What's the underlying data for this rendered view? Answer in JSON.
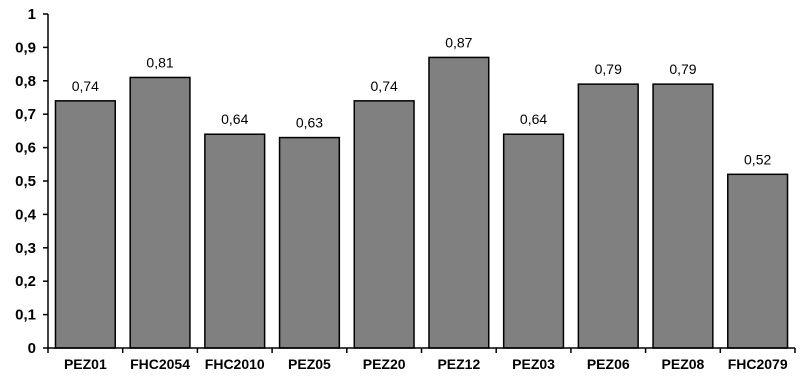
{
  "chart_data": {
    "type": "bar",
    "categories": [
      "PEZ01",
      "FHC2054",
      "FHC2010",
      "PEZ05",
      "PEZ20",
      "PEZ12",
      "PEZ03",
      "PEZ06",
      "PEZ08",
      "FHC2079"
    ],
    "values": [
      0.74,
      0.81,
      0.64,
      0.63,
      0.74,
      0.87,
      0.64,
      0.79,
      0.79,
      0.52
    ],
    "data_labels": [
      "0,74",
      "0,81",
      "0,64",
      "0,63",
      "0,74",
      "0,87",
      "0,64",
      "0,79",
      "0,79",
      "0,52"
    ],
    "title": "",
    "xlabel": "",
    "ylabel": "",
    "ylim": [
      0,
      1
    ],
    "yticks": [
      0,
      0.1,
      0.2,
      0.3,
      0.4,
      0.5,
      0.6,
      0.7,
      0.8,
      0.9,
      1
    ],
    "ytick_labels": [
      "0",
      "0,1",
      "0,2",
      "0,3",
      "0,4",
      "0,5",
      "0,6",
      "0,7",
      "0,8",
      "0,9",
      "1"
    ],
    "grid": false,
    "legend": "none",
    "colors": {
      "bar_fill": "#808080",
      "bar_stroke": "#000000",
      "axis": "#000000",
      "text": "#000000"
    }
  }
}
